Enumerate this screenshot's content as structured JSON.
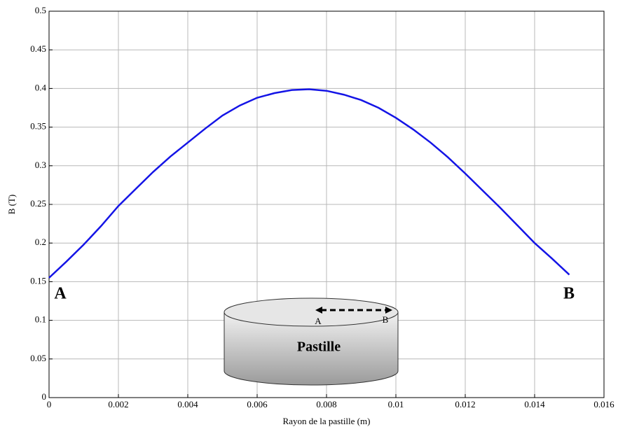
{
  "chart_data": {
    "type": "line",
    "xlabel": "Rayon de la pastille (m)",
    "ylabel": "B (T)",
    "x": [
      0,
      0.0005,
      0.001,
      0.0015,
      0.002,
      0.0025,
      0.003,
      0.0035,
      0.004,
      0.0045,
      0.005,
      0.0055,
      0.006,
      0.0065,
      0.007,
      0.0075,
      0.008,
      0.0085,
      0.009,
      0.0095,
      0.01,
      0.0105,
      0.011,
      0.0115,
      0.012,
      0.0125,
      0.013,
      0.0135,
      0.014,
      0.0145,
      0.015
    ],
    "series": [
      {
        "color": "#1414e6",
        "values": [
          0.155,
          0.176,
          0.198,
          0.222,
          0.248,
          0.27,
          0.292,
          0.312,
          0.33,
          0.348,
          0.365,
          0.378,
          0.388,
          0.394,
          0.398,
          0.399,
          0.397,
          0.392,
          0.385,
          0.375,
          0.362,
          0.347,
          0.33,
          0.311,
          0.29,
          0.268,
          0.246,
          0.223,
          0.2,
          0.18,
          0.159
        ]
      }
    ],
    "xlim": [
      0,
      0.016
    ],
    "xticks": [
      0,
      0.002,
      0.004,
      0.006,
      0.008,
      0.01,
      0.012,
      0.014,
      0.016
    ],
    "ylim": [
      0,
      0.5
    ],
    "yticks": [
      0,
      0.05,
      0.1,
      0.15,
      0.2,
      0.25,
      0.3,
      0.35,
      0.4,
      0.45,
      0.5
    ],
    "grid": true,
    "annotations": [
      "A",
      "B",
      "Pastille",
      "A",
      "B"
    ]
  }
}
